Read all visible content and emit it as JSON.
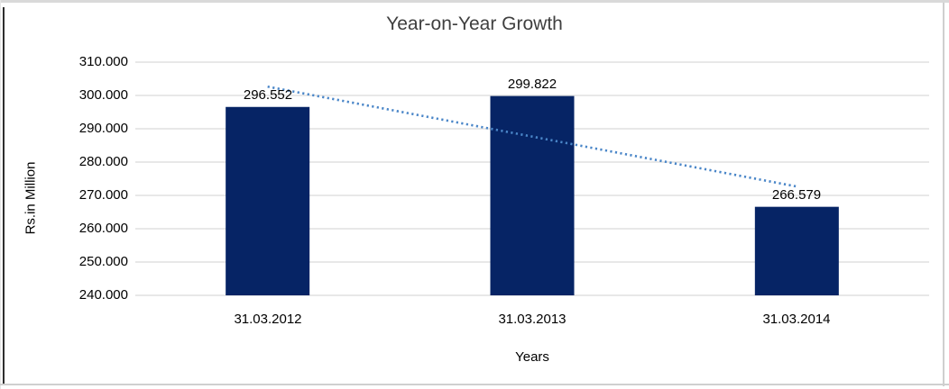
{
  "chart_data": {
    "type": "bar",
    "title": "Year-on-Year Growth",
    "categories": [
      "31.03.2012",
      "31.03.2013",
      "31.03.2014"
    ],
    "values": [
      296.552,
      299.822,
      266.579
    ],
    "data_labels": [
      "296.552",
      "299.822",
      "266.579"
    ],
    "xlabel": "Years",
    "ylabel": "Rs.in Million",
    "ylim": [
      240,
      310
    ],
    "ytick_labels": [
      "310.000",
      "300.000",
      "290.000",
      "280.000",
      "270.000",
      "260.000",
      "250.000",
      "240.000"
    ],
    "grid": true,
    "legend": "none",
    "trendline": {
      "type": "linear",
      "style": "dotted"
    },
    "colors": {
      "bar": "#062465",
      "trendline": "#4a86c8",
      "gridline": "#d9d9d9",
      "title_text": "#3f3f3f",
      "axis_text": "#000000"
    }
  }
}
